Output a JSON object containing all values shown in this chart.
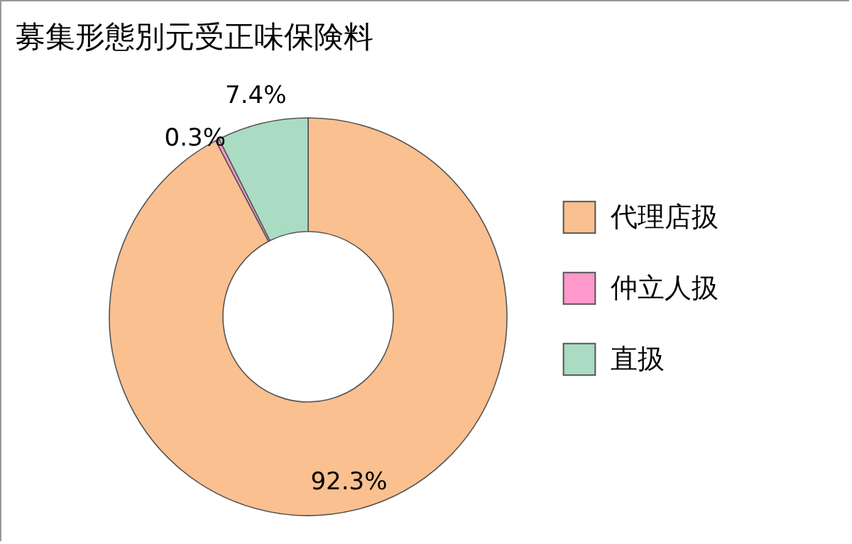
{
  "chart_data": {
    "type": "donut",
    "title": "募集形態別元受正味保険料",
    "categories": [
      "代理店扱",
      "仲立人扱",
      "直扱"
    ],
    "values": [
      92.3,
      0.3,
      7.4
    ],
    "colors": [
      "#fac090",
      "#ff99cc",
      "#a9dcc3"
    ],
    "value_labels": [
      "92.3%",
      "0.3%",
      "7.4%"
    ],
    "legend": "right"
  }
}
